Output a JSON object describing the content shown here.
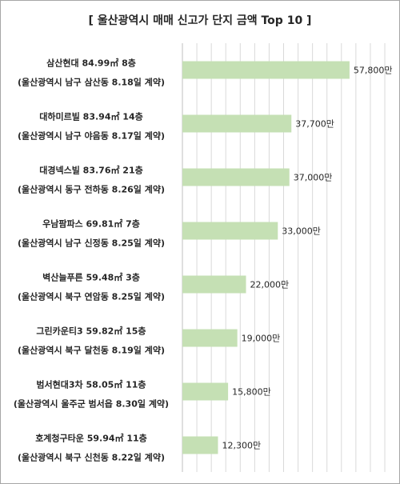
{
  "chart_data": {
    "type": "bar",
    "orientation": "horizontal",
    "title": "[ 울산광역시 매매 신고가 단지 금액 Top 10 ]",
    "categories": [
      {
        "line1": "삼산현대 84.99㎡ 8층",
        "line2": "(울산광역시 남구 삼산동 8.18일 계약)"
      },
      {
        "line1": "대하미르빌 83.94㎡ 14층",
        "line2": "(울산광역시 남구 야음동 8.17일 계약)"
      },
      {
        "line1": "대경넥스빌 83.76㎡ 21층",
        "line2": "(울산광역시 동구 전하동 8.26일 계약)"
      },
      {
        "line1": "우남팜파스 69.81㎡ 7층",
        "line2": "(울산광역시 남구 신정동 8.25일 계약)"
      },
      {
        "line1": "벽산늘푸른 59.48㎡ 3층",
        "line2": "(울산광역시 북구 연암동 8.25일 계약)"
      },
      {
        "line1": "그린카운티3 59.82㎡ 15층",
        "line2": "(울산광역시 북구 달천동 8.19일 계약)"
      },
      {
        "line1": "범서현대3차 58.05㎡ 11층",
        "line2": "(울산광역시 울주군 범서읍 8.30일 계약)"
      },
      {
        "line1": "호계청구타운 59.94㎡ 11층",
        "line2": "(울산광역시 북구 신천동 8.22일 계약)"
      }
    ],
    "values": [
      57800,
      37700,
      37000,
      33000,
      22000,
      19000,
      15800,
      12300
    ],
    "value_labels": [
      "57,800만",
      "37,700만",
      "37,000만",
      "33,000만",
      "22,000만",
      "19,000만",
      "15,800만",
      "12,300만"
    ],
    "xlim": [
      0,
      70000
    ],
    "grid": true,
    "colors": {
      "bar": "#c5e0b4",
      "grid": "#d9d9d9",
      "axis": "#bfbfbf",
      "text": "#262626"
    }
  }
}
